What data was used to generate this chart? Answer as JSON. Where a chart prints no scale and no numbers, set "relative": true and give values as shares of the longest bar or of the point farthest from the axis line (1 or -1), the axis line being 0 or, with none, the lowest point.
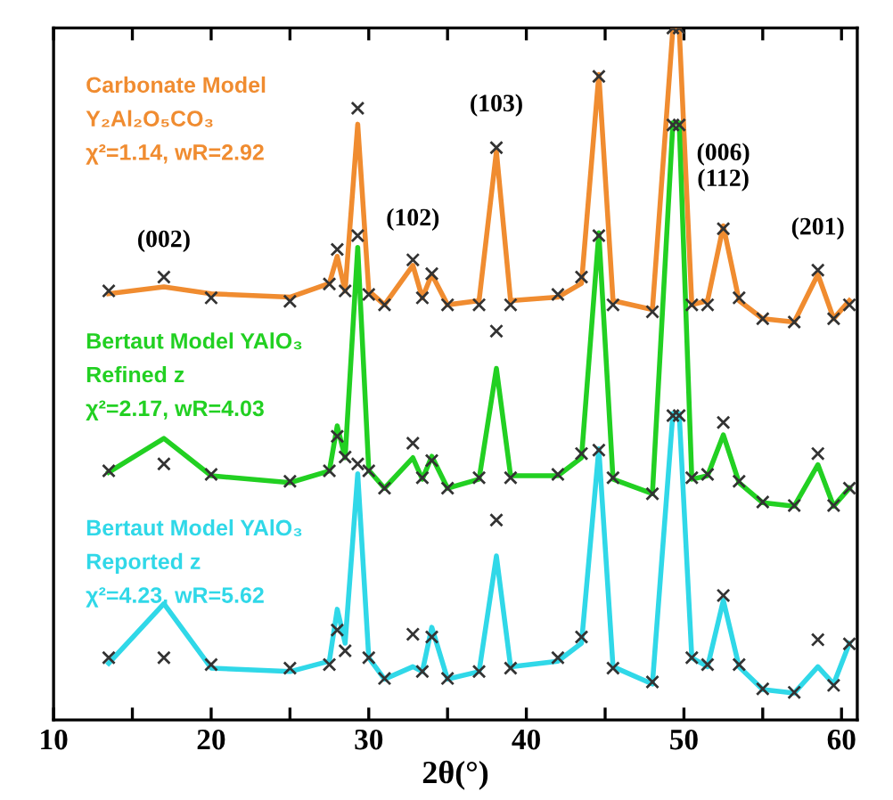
{
  "chart_data": {
    "type": "line",
    "relative": true,
    "xlabel": "2θ(°)",
    "xlim": [
      10,
      61
    ],
    "xticks": [
      10,
      {
        "value": 15,
        "label": null
      },
      20,
      {
        "value": 25,
        "label": null
      },
      30,
      {
        "value": 35,
        "label": null
      },
      40,
      {
        "value": 45,
        "label": null
      },
      50,
      {
        "value": 55,
        "label": null
      },
      60
    ],
    "x": [
      13.5,
      17,
      20,
      25,
      27.5,
      28,
      28.5,
      29.3,
      30,
      31,
      32.8,
      33.4,
      34,
      35,
      37,
      38.1,
      39,
      42,
      43.5,
      44.6,
      45.5,
      48,
      49.3,
      49.7,
      50.5,
      51.5,
      52.5,
      53.5,
      55,
      57,
      58.5,
      59.5,
      60.5
    ],
    "series": [
      {
        "name": "Carbonate Model\nY₂Al₂O₅CO₃\nχ²=1.14, wR=2.92",
        "color": "#f08c30",
        "values": [
          0.616,
          0.626,
          0.616,
          0.611,
          0.631,
          0.67,
          0.62,
          0.861,
          0.62,
          0.6,
          0.657,
          0.61,
          0.644,
          0.6,
          0.606,
          0.822,
          0.606,
          0.611,
          0.631,
          0.933,
          0.606,
          0.593,
          1.0,
          1.0,
          0.6,
          0.606,
          0.714,
          0.606,
          0.58,
          0.575,
          0.644,
          0.58,
          0.606
        ]
      },
      {
        "type": "scatter",
        "color": "#333333",
        "marker": "cross",
        "values": [
          0.62,
          0.64,
          0.61,
          0.605,
          0.63,
          0.68,
          0.62,
          0.884,
          0.615,
          0.6,
          0.665,
          0.61,
          0.645,
          0.6,
          0.6,
          0.827,
          0.6,
          0.615,
          0.64,
          0.93,
          0.6,
          0.59,
          1.0,
          1.0,
          0.6,
          0.6,
          0.71,
          0.61,
          0.58,
          0.575,
          0.65,
          0.58,
          0.6
        ]
      },
      {
        "name": "Bertaut Model YAlO₃\nRefined z\nχ²=2.17, wR=4.03",
        "color": "#22d022",
        "values": [
          0.358,
          0.407,
          0.353,
          0.343,
          0.36,
          0.425,
          0.379,
          0.683,
          0.361,
          0.335,
          0.379,
          0.348,
          0.381,
          0.335,
          0.348,
          0.508,
          0.353,
          0.353,
          0.379,
          0.704,
          0.348,
          0.327,
          0.863,
          0.863,
          0.348,
          0.353,
          0.412,
          0.343,
          0.314,
          0.309,
          0.369,
          0.309,
          0.335
        ]
      },
      {
        "type": "scatter",
        "color": "#333333",
        "marker": "cross",
        "values": [
          0.36,
          0.37,
          0.355,
          0.345,
          0.36,
          0.41,
          0.38,
          0.7,
          0.36,
          0.335,
          0.4,
          0.35,
          0.375,
          0.335,
          0.35,
          0.562,
          0.35,
          0.355,
          0.385,
          0.7,
          0.35,
          0.327,
          0.86,
          0.86,
          0.35,
          0.355,
          0.43,
          0.345,
          0.315,
          0.31,
          0.385,
          0.31,
          0.335
        ]
      },
      {
        "name": "Bertaut Model YAlO₃\nReported z\nχ²=4.23, wR=5.62",
        "color": "#30d8e8",
        "values": [
          0.082,
          0.168,
          0.075,
          0.07,
          0.085,
          0.16,
          0.111,
          0.356,
          0.09,
          0.059,
          0.077,
          0.07,
          0.134,
          0.059,
          0.07,
          0.237,
          0.077,
          0.085,
          0.111,
          0.392,
          0.077,
          0.052,
          0.443,
          0.443,
          0.09,
          0.077,
          0.173,
          0.077,
          0.044,
          0.039,
          0.077,
          0.052,
          0.111
        ]
      },
      {
        "type": "scatter",
        "color": "#333333",
        "marker": "cross",
        "values": [
          0.09,
          0.09,
          0.08,
          0.075,
          0.08,
          0.13,
          0.1,
          0.37,
          0.09,
          0.06,
          0.124,
          0.07,
          0.12,
          0.06,
          0.07,
          0.289,
          0.075,
          0.09,
          0.12,
          0.39,
          0.075,
          0.055,
          0.44,
          0.44,
          0.09,
          0.08,
          0.18,
          0.08,
          0.045,
          0.04,
          0.116,
          0.05,
          0.11
        ]
      }
    ],
    "annotations": [
      {
        "text": "(002)",
        "x": 17,
        "y": 0.626
      },
      {
        "text": "(102)",
        "x": 32.8,
        "y": 0.657
      },
      {
        "text": "(103)",
        "x": 38.1,
        "y": 0.822
      },
      {
        "text": "(006)\n(112)",
        "x": 52.5,
        "y": 0.714
      },
      {
        "text": "(201)",
        "x": 58.5,
        "y": 0.644
      }
    ]
  }
}
